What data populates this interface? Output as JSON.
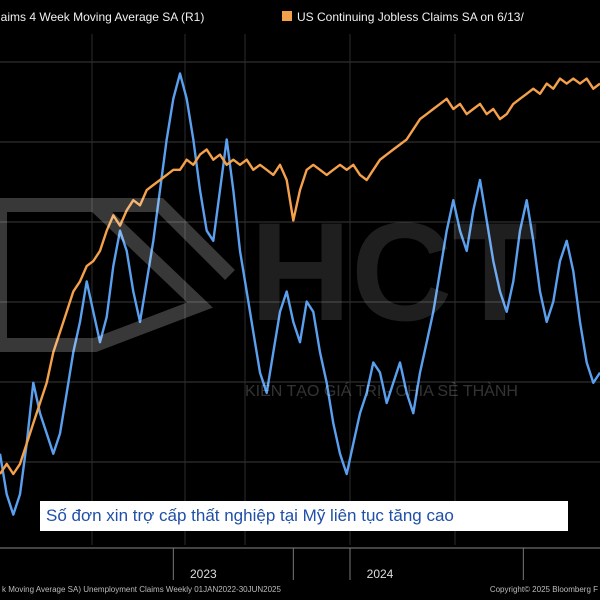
{
  "legend": {
    "series1_label": "laims 4 Week Moving Average SA  (R1)",
    "series2_label": "US Continuing Jobless Claims SA  on 6/13/",
    "series1_color": "#5aa0ef",
    "series2_color": "#f5a04a"
  },
  "caption": "Số đơn xin trợ cấp thất nghiệp tại Mỹ liên tục tăng cao",
  "watermark": {
    "text": "KIẾN TẠO GIÁ TRỊ - CHIA SẺ THÀNH",
    "logo": "HCT"
  },
  "footer": {
    "left": "k Moving Average SA) Unemployment Claims  Weekly 01JAN2022-30JUN2025",
    "right": "Copyright© 2025 Bloomberg F"
  },
  "chart_data": {
    "type": "line",
    "x_unit": "week index",
    "xlim": [
      0,
      180
    ],
    "ylim": [
      0,
      100
    ],
    "x_tick_labels": [
      {
        "label": "2023",
        "x": 52
      },
      {
        "label": "2024",
        "x": 105
      }
    ],
    "x_tick_marks": [
      52,
      88,
      105,
      157
    ],
    "series": [
      {
        "name": "4 Week Moving Average SA (R1)",
        "color": "#5aa0ef",
        "points": [
          [
            0,
            18
          ],
          [
            2,
            10
          ],
          [
            4,
            6
          ],
          [
            6,
            10
          ],
          [
            8,
            20
          ],
          [
            10,
            32
          ],
          [
            12,
            26
          ],
          [
            14,
            22
          ],
          [
            16,
            18
          ],
          [
            18,
            22
          ],
          [
            20,
            30
          ],
          [
            22,
            38
          ],
          [
            24,
            44
          ],
          [
            26,
            52
          ],
          [
            28,
            46
          ],
          [
            30,
            40
          ],
          [
            32,
            45
          ],
          [
            34,
            55
          ],
          [
            36,
            62
          ],
          [
            38,
            58
          ],
          [
            40,
            50
          ],
          [
            42,
            44
          ],
          [
            44,
            52
          ],
          [
            46,
            60
          ],
          [
            48,
            70
          ],
          [
            50,
            80
          ],
          [
            52,
            88
          ],
          [
            54,
            93
          ],
          [
            56,
            88
          ],
          [
            58,
            80
          ],
          [
            60,
            70
          ],
          [
            62,
            62
          ],
          [
            64,
            60
          ],
          [
            66,
            70
          ],
          [
            68,
            80
          ],
          [
            70,
            70
          ],
          [
            72,
            58
          ],
          [
            74,
            50
          ],
          [
            76,
            42
          ],
          [
            78,
            34
          ],
          [
            80,
            30
          ],
          [
            82,
            38
          ],
          [
            84,
            46
          ],
          [
            86,
            50
          ],
          [
            88,
            44
          ],
          [
            90,
            40
          ],
          [
            92,
            48
          ],
          [
            94,
            46
          ],
          [
            96,
            38
          ],
          [
            98,
            32
          ],
          [
            100,
            24
          ],
          [
            102,
            18
          ],
          [
            104,
            14
          ],
          [
            106,
            20
          ],
          [
            108,
            26
          ],
          [
            110,
            30
          ],
          [
            112,
            36
          ],
          [
            114,
            34
          ],
          [
            116,
            28
          ],
          [
            118,
            32
          ],
          [
            120,
            36
          ],
          [
            122,
            30
          ],
          [
            124,
            26
          ],
          [
            126,
            34
          ],
          [
            128,
            40
          ],
          [
            130,
            46
          ],
          [
            132,
            54
          ],
          [
            134,
            62
          ],
          [
            136,
            68
          ],
          [
            138,
            62
          ],
          [
            140,
            58
          ],
          [
            142,
            66
          ],
          [
            144,
            72
          ],
          [
            146,
            64
          ],
          [
            148,
            56
          ],
          [
            150,
            50
          ],
          [
            152,
            46
          ],
          [
            154,
            52
          ],
          [
            156,
            62
          ],
          [
            158,
            68
          ],
          [
            160,
            60
          ],
          [
            162,
            50
          ],
          [
            164,
            44
          ],
          [
            166,
            48
          ],
          [
            168,
            56
          ],
          [
            170,
            60
          ],
          [
            172,
            54
          ],
          [
            174,
            44
          ],
          [
            176,
            36
          ],
          [
            178,
            32
          ],
          [
            180,
            34
          ]
        ]
      },
      {
        "name": "US Continuing Jobless Claims SA",
        "color": "#f5a04a",
        "points": [
          [
            0,
            14
          ],
          [
            2,
            16
          ],
          [
            4,
            14
          ],
          [
            6,
            16
          ],
          [
            8,
            20
          ],
          [
            10,
            24
          ],
          [
            12,
            28
          ],
          [
            14,
            32
          ],
          [
            16,
            38
          ],
          [
            18,
            42
          ],
          [
            20,
            46
          ],
          [
            22,
            50
          ],
          [
            24,
            52
          ],
          [
            26,
            55
          ],
          [
            28,
            56
          ],
          [
            30,
            58
          ],
          [
            32,
            62
          ],
          [
            34,
            65
          ],
          [
            36,
            63
          ],
          [
            38,
            66
          ],
          [
            40,
            68
          ],
          [
            42,
            67
          ],
          [
            44,
            70
          ],
          [
            46,
            71
          ],
          [
            48,
            72
          ],
          [
            50,
            73
          ],
          [
            52,
            74
          ],
          [
            54,
            74
          ],
          [
            56,
            76
          ],
          [
            58,
            75
          ],
          [
            60,
            77
          ],
          [
            62,
            78
          ],
          [
            64,
            76
          ],
          [
            66,
            77
          ],
          [
            68,
            75
          ],
          [
            70,
            76
          ],
          [
            72,
            75
          ],
          [
            74,
            76
          ],
          [
            76,
            74
          ],
          [
            78,
            75
          ],
          [
            80,
            74
          ],
          [
            82,
            73
          ],
          [
            84,
            75
          ],
          [
            86,
            72
          ],
          [
            88,
            64
          ],
          [
            90,
            70
          ],
          [
            92,
            74
          ],
          [
            94,
            75
          ],
          [
            96,
            74
          ],
          [
            98,
            73
          ],
          [
            100,
            74
          ],
          [
            102,
            75
          ],
          [
            104,
            74
          ],
          [
            106,
            75
          ],
          [
            108,
            73
          ],
          [
            110,
            72
          ],
          [
            112,
            74
          ],
          [
            114,
            76
          ],
          [
            116,
            77
          ],
          [
            118,
            78
          ],
          [
            120,
            79
          ],
          [
            122,
            80
          ],
          [
            124,
            82
          ],
          [
            126,
            84
          ],
          [
            128,
            85
          ],
          [
            130,
            86
          ],
          [
            132,
            87
          ],
          [
            134,
            88
          ],
          [
            136,
            86
          ],
          [
            138,
            87
          ],
          [
            140,
            85
          ],
          [
            142,
            86
          ],
          [
            144,
            87
          ],
          [
            146,
            85
          ],
          [
            148,
            86
          ],
          [
            150,
            84
          ],
          [
            152,
            85
          ],
          [
            154,
            87
          ],
          [
            156,
            88
          ],
          [
            158,
            89
          ],
          [
            160,
            90
          ],
          [
            162,
            89
          ],
          [
            164,
            91
          ],
          [
            166,
            90
          ],
          [
            168,
            92
          ],
          [
            170,
            91
          ],
          [
            172,
            92
          ],
          [
            174,
            91
          ],
          [
            176,
            92
          ],
          [
            178,
            90
          ],
          [
            180,
            91
          ]
        ]
      }
    ]
  }
}
